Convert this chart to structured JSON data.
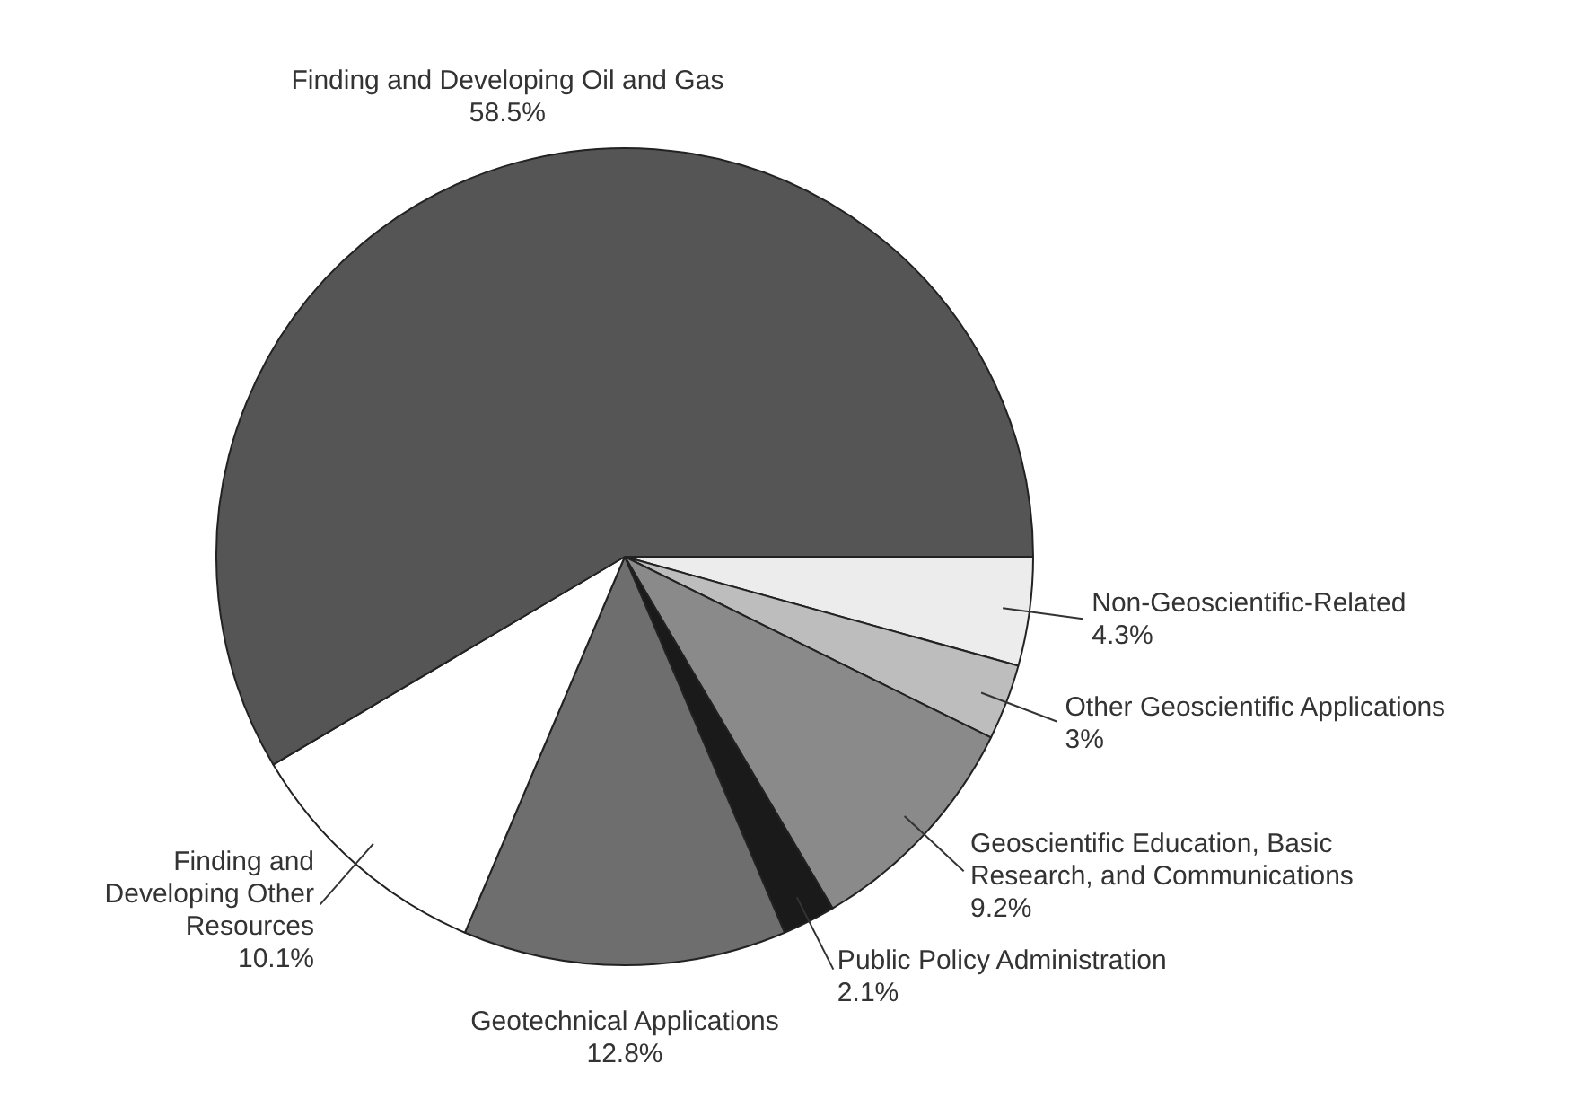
{
  "chart_data": {
    "type": "pie",
    "categories": [
      "Non-Geoscientific-Related",
      "Other Geoscientific Applications",
      "Geoscientific Education, Basic Research, and Communications",
      "Public Policy Administration",
      "Geotechnical Applications",
      "Finding and Developing Other Resources",
      "Finding and Developing Oil and Gas"
    ],
    "values": [
      4.3,
      3,
      9.2,
      2.1,
      12.8,
      10.1,
      58.5
    ],
    "value_labels": [
      "4.3%",
      "3%",
      "9.2%",
      "2.1%",
      "12.8%",
      "10.1%",
      "58.5%"
    ],
    "colors": [
      "#ececec",
      "#bdbdbd",
      "#8a8a8a",
      "#1a1a1a",
      "#6e6e6e",
      "#ffffff",
      "#555555"
    ],
    "legend": false
  }
}
